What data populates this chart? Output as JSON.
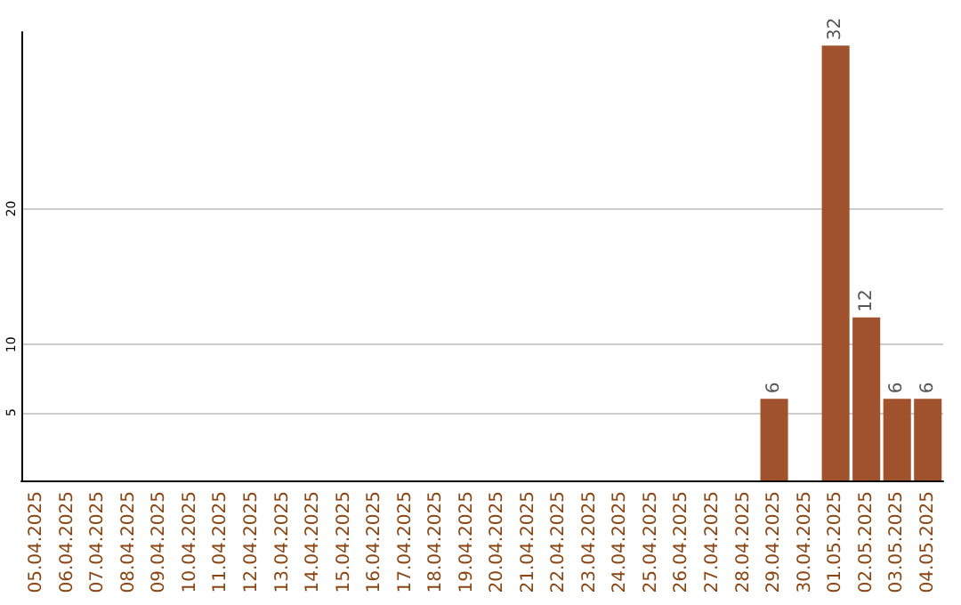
{
  "chart_data": {
    "type": "bar",
    "categories": [
      "05.04.2025",
      "06.04.2025",
      "07.04.2025",
      "08.04.2025",
      "09.04.2025",
      "10.04.2025",
      "11.04.2025",
      "12.04.2025",
      "13.04.2025",
      "14.04.2025",
      "15.04.2025",
      "16.04.2025",
      "17.04.2025",
      "18.04.2025",
      "19.04.2025",
      "20.04.2025",
      "21.04.2025",
      "22.04.2025",
      "23.04.2025",
      "24.04.2025",
      "25.04.2025",
      "26.04.2025",
      "27.04.2025",
      "28.04.2025",
      "29.04.2025",
      "30.04.2025",
      "01.05.2025",
      "02.05.2025",
      "03.05.2025",
      "04.05.2025"
    ],
    "values": [
      0,
      0,
      0,
      0,
      0,
      0,
      0,
      0,
      0,
      0,
      0,
      0,
      0,
      0,
      0,
      0,
      0,
      0,
      0,
      0,
      0,
      0,
      0,
      0,
      6,
      0,
      32,
      12,
      6,
      6
    ],
    "value_labels": [
      null,
      null,
      null,
      null,
      null,
      null,
      null,
      null,
      null,
      null,
      null,
      null,
      null,
      null,
      null,
      null,
      null,
      null,
      null,
      null,
      null,
      null,
      null,
      null,
      "6",
      null,
      "32",
      "12",
      "6",
      "6"
    ],
    "color": "#a0522d",
    "ylim": [
      0,
      33
    ],
    "yticks": [
      5,
      10,
      20
    ],
    "grid": "y"
  }
}
